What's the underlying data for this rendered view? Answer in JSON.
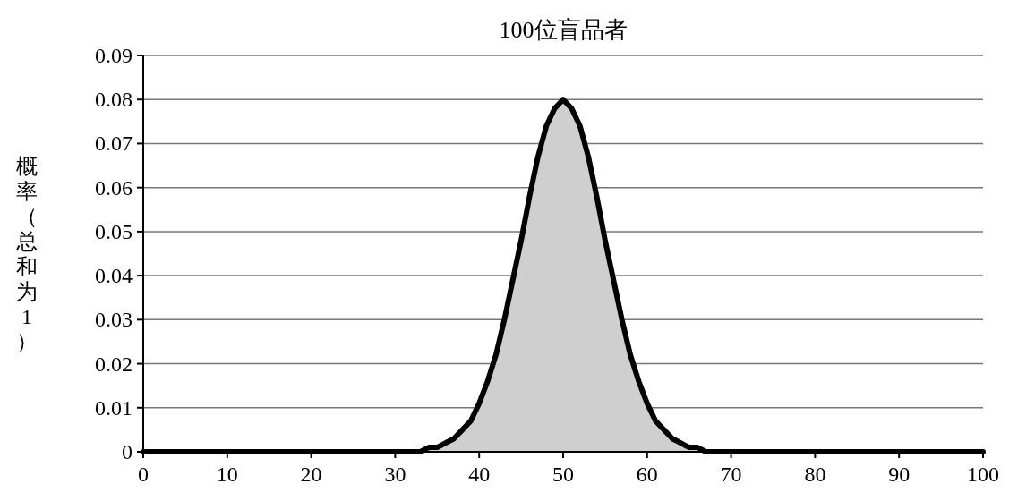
{
  "chart_data": {
    "type": "area",
    "title": "100位盲品者",
    "ylabel": "概率（总和为1）",
    "x": [
      0,
      10,
      20,
      30,
      32,
      33,
      34,
      35,
      36,
      37,
      38,
      39,
      40,
      41,
      42,
      43,
      44,
      45,
      46,
      47,
      48,
      49,
      50,
      51,
      52,
      53,
      54,
      55,
      56,
      57,
      58,
      59,
      60,
      61,
      62,
      63,
      64,
      65,
      66,
      67,
      68,
      70,
      80,
      90,
      100
    ],
    "series": [
      {
        "color": "#000000",
        "values": [
          0,
          0,
          0,
          0,
          0.0,
          0.0,
          0.001,
          0.001,
          0.002,
          0.003,
          0.005,
          0.007,
          0.011,
          0.016,
          0.022,
          0.03,
          0.039,
          0.048,
          0.058,
          0.067,
          0.074,
          0.078,
          0.08,
          0.078,
          0.074,
          0.067,
          0.058,
          0.048,
          0.039,
          0.03,
          0.022,
          0.016,
          0.011,
          0.007,
          0.005,
          0.003,
          0.002,
          0.001,
          0.001,
          0.0,
          0.0,
          0,
          0,
          0,
          0
        ]
      }
    ],
    "xlim": [
      0,
      100
    ],
    "xticks": [
      0,
      10,
      20,
      30,
      40,
      50,
      60,
      70,
      80,
      90,
      100
    ],
    "ylim": [
      0,
      0.09
    ],
    "yticks": [
      0,
      0.01,
      0.02,
      0.03,
      0.04,
      0.05,
      0.06,
      0.07,
      0.08,
      0.09
    ],
    "grid": "y"
  }
}
